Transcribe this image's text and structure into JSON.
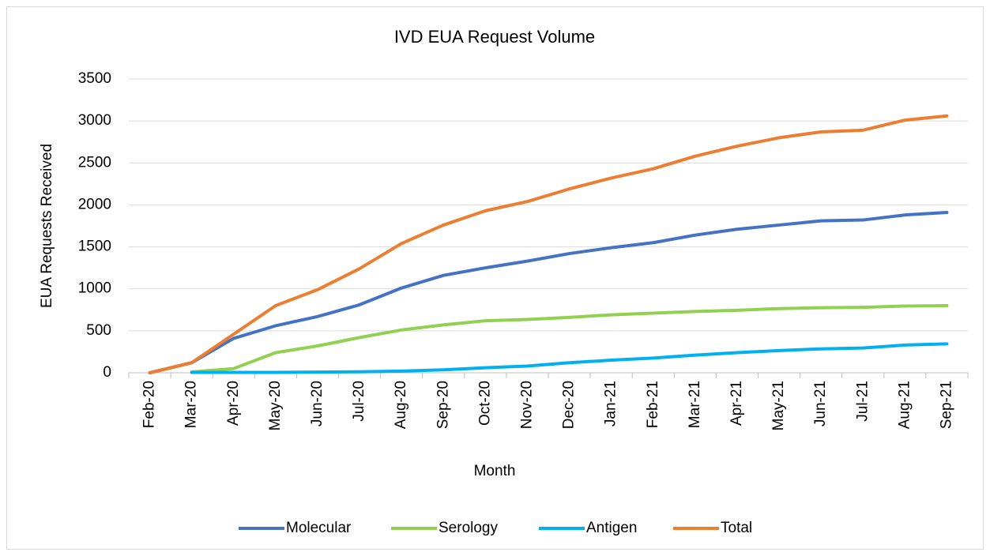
{
  "chart_data": {
    "type": "line",
    "title": "IVD EUA Request Volume",
    "x_label": "Month",
    "y_label": "EUA Requests Received",
    "categories": [
      "Feb-20",
      "Mar-20",
      "Apr-20",
      "May-20",
      "Jun-20",
      "Jul-20",
      "Aug-20",
      "Sep-20",
      "Oct-20",
      "Nov-20",
      "Dec-20",
      "Jan-21",
      "Feb-21",
      "Mar-21",
      "Apr-21",
      "May-21",
      "Jun-21",
      "Jul-21",
      "Aug-21",
      "Sep-21"
    ],
    "series": [
      {
        "name": "Molecular",
        "color": "#4472c4",
        "values": [
          0,
          120,
          410,
          560,
          670,
          810,
          1010,
          1160,
          1250,
          1330,
          1420,
          1490,
          1550,
          1640,
          1710,
          1760,
          1810,
          1820,
          1880,
          1910
        ]
      },
      {
        "name": "Serology",
        "color": "#92d050",
        "values": [
          null,
          10,
          50,
          240,
          320,
          420,
          510,
          570,
          620,
          635,
          660,
          690,
          710,
          730,
          745,
          765,
          775,
          780,
          795,
          800
        ]
      },
      {
        "name": "Antigen",
        "color": "#00b0f0",
        "values": [
          null,
          5,
          5,
          5,
          8,
          12,
          20,
          35,
          60,
          80,
          120,
          150,
          175,
          210,
          240,
          265,
          285,
          295,
          330,
          345
        ]
      },
      {
        "name": "Total",
        "color": "#ed7d31",
        "values": [
          0,
          120,
          460,
          800,
          990,
          1240,
          1540,
          1760,
          1930,
          2040,
          2190,
          2320,
          2430,
          2580,
          2700,
          2800,
          2870,
          2890,
          3010,
          3060
        ]
      }
    ],
    "ylim": [
      0,
      3500
    ],
    "yticks": [
      0,
      500,
      1000,
      1500,
      2000,
      2500,
      3000,
      3500
    ],
    "grid": true,
    "legend": "bottom"
  }
}
